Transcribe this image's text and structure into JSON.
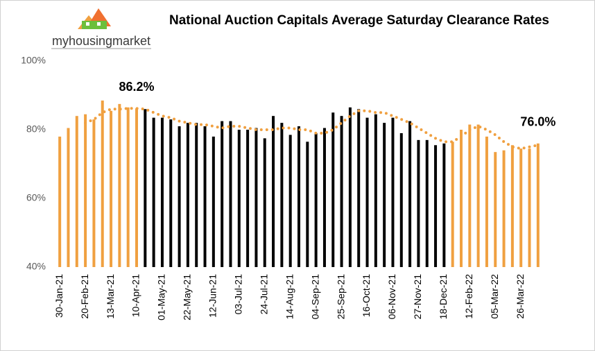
{
  "logo": "myhousingmarket",
  "chart_data": {
    "type": "bar",
    "title": "National Auction Capitals Average Saturday Clearance Rates",
    "categories": [
      "30-Jan-21",
      null,
      null,
      "20-Feb-21",
      null,
      null,
      "13-Mar-21",
      null,
      null,
      "10-Apr-21",
      null,
      null,
      "01-May-21",
      null,
      null,
      "22-May-21",
      null,
      null,
      "12-Jun-21",
      null,
      null,
      "03-Jul-21",
      null,
      null,
      "24-Jul-21",
      null,
      null,
      "14-Aug-21",
      null,
      null,
      "04-Sep-21",
      null,
      null,
      "25-Sep-21",
      null,
      null,
      "16-Oct-21",
      null,
      null,
      "06-Nov-21",
      null,
      null,
      "27-Nov-21",
      null,
      null,
      "18-Dec-21",
      null,
      null,
      "12-Feb-22",
      null,
      null,
      "05-Mar-22",
      null,
      null,
      "26-Mar-22",
      null,
      null
    ],
    "series": [
      {
        "values": [
          78,
          80.5,
          84,
          84.5,
          83,
          88.5,
          85.5,
          87.5,
          86.5,
          86.2,
          86,
          83.5,
          83.5,
          83,
          81,
          82,
          82,
          81,
          78,
          82.5,
          82.5,
          80,
          80,
          80.5,
          77.5,
          84,
          82,
          78.5,
          81,
          76.5,
          79,
          80.5,
          85,
          84,
          86.5,
          86,
          83.5,
          84.5,
          82,
          83.5,
          79,
          82.5,
          77,
          77,
          75.5,
          76,
          76.5,
          80,
          81.5,
          81.5,
          78,
          73.5,
          74,
          75.5,
          74.5,
          74.5,
          76
        ],
        "value_labels": [
          null,
          null,
          null,
          null,
          null,
          null,
          null,
          null,
          null,
          "86.2%",
          null,
          null,
          null,
          null,
          null,
          null,
          null,
          null,
          null,
          null,
          null,
          null,
          null,
          null,
          null,
          null,
          null,
          null,
          null,
          null,
          null,
          null,
          null,
          null,
          null,
          null,
          null,
          null,
          null,
          null,
          null,
          null,
          null,
          null,
          null,
          null,
          null,
          null,
          null,
          null,
          null,
          null,
          null,
          null,
          null,
          null,
          "76.0%"
        ],
        "colors": [
          "#f0a040",
          "#f0a040",
          "#f0a040",
          "#f0a040",
          "#f0a040",
          "#f0a040",
          "#f0a040",
          "#f0a040",
          "#f0a040",
          "#f0a040",
          "#000000",
          "#000000",
          "#000000",
          "#000000",
          "#000000",
          "#000000",
          "#000000",
          "#000000",
          "#000000",
          "#000000",
          "#000000",
          "#000000",
          "#000000",
          "#000000",
          "#000000",
          "#000000",
          "#000000",
          "#000000",
          "#000000",
          "#000000",
          "#000000",
          "#000000",
          "#000000",
          "#000000",
          "#000000",
          "#000000",
          "#000000",
          "#000000",
          "#000000",
          "#000000",
          "#000000",
          "#000000",
          "#000000",
          "#000000",
          "#000000",
          "#000000",
          "#f0a040",
          "#f0a040",
          "#f0a040",
          "#f0a040",
          "#f0a040",
          "#f0a040",
          "#f0a040",
          "#f0a040",
          "#f0a040",
          "#f0a040",
          "#f0a040"
        ]
      },
      {
        "type": "line",
        "color": "#f0a040",
        "values": [
          null,
          null,
          null,
          82,
          83,
          85,
          86,
          86,
          86.2,
          86.2,
          86,
          85,
          84,
          83.5,
          82.5,
          82,
          81.5,
          81.5,
          81,
          80.5,
          81,
          81,
          80.5,
          80,
          80,
          80,
          80.5,
          80.5,
          80,
          80,
          79,
          79,
          80,
          82,
          84,
          85.5,
          85.5,
          85,
          85,
          84,
          83,
          82,
          80.5,
          79,
          77.5,
          76.5,
          76.5,
          78,
          80,
          81,
          80,
          78.5,
          76.5,
          75,
          74.5,
          75,
          75.5
        ]
      }
    ],
    "ylim": [
      40,
      100
    ],
    "yticks": [
      {
        "value": 40,
        "label": "40%"
      },
      {
        "value": 60,
        "label": "60%"
      },
      {
        "value": 80,
        "label": "80%"
      },
      {
        "value": 100,
        "label": "100%"
      }
    ]
  }
}
